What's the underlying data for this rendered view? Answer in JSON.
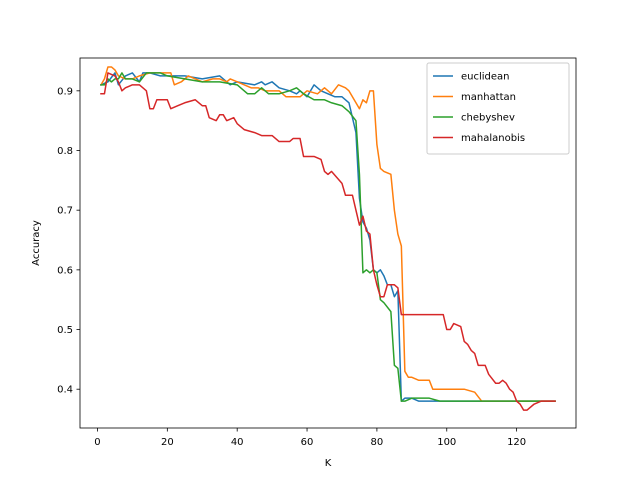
{
  "chart_data": {
    "type": "line",
    "title": "",
    "xlabel": "K",
    "ylabel": "Accuracy",
    "xlim": [
      -5,
      137
    ],
    "ylim": [
      0.335,
      0.955
    ],
    "xticks": [
      0,
      20,
      40,
      60,
      80,
      100,
      120
    ],
    "yticks": [
      0.4,
      0.5,
      0.6,
      0.7,
      0.8,
      0.9
    ],
    "xtick_labels": [
      "0",
      "20",
      "40",
      "60",
      "80",
      "100",
      "120"
    ],
    "ytick_labels": [
      "0.4",
      "0.5",
      "0.6",
      "0.7",
      "0.8",
      "0.9"
    ],
    "grid": false,
    "legend_position": "top-right",
    "series": [
      {
        "name": "euclidean",
        "color": "#1f77b4",
        "points": [
          [
            1,
            0.91
          ],
          [
            3,
            0.915
          ],
          [
            5,
            0.93
          ],
          [
            6,
            0.91
          ],
          [
            8,
            0.925
          ],
          [
            10,
            0.93
          ],
          [
            12,
            0.915
          ],
          [
            13,
            0.93
          ],
          [
            15,
            0.93
          ],
          [
            18,
            0.925
          ],
          [
            25,
            0.925
          ],
          [
            30,
            0.92
          ],
          [
            35,
            0.925
          ],
          [
            38,
            0.91
          ],
          [
            40,
            0.915
          ],
          [
            45,
            0.91
          ],
          [
            47,
            0.915
          ],
          [
            48,
            0.91
          ],
          [
            50,
            0.915
          ],
          [
            52,
            0.905
          ],
          [
            55,
            0.9
          ],
          [
            57,
            0.895
          ],
          [
            58,
            0.9
          ],
          [
            60,
            0.89
          ],
          [
            62,
            0.91
          ],
          [
            64,
            0.9
          ],
          [
            66,
            0.895
          ],
          [
            68,
            0.89
          ],
          [
            70,
            0.89
          ],
          [
            72,
            0.88
          ],
          [
            74,
            0.83
          ],
          [
            75,
            0.72
          ],
          [
            76,
            0.68
          ],
          [
            77,
            0.67
          ],
          [
            78,
            0.65
          ],
          [
            79,
            0.6
          ],
          [
            80,
            0.595
          ],
          [
            81,
            0.6
          ],
          [
            82,
            0.59
          ],
          [
            83,
            0.575
          ],
          [
            84,
            0.575
          ],
          [
            85,
            0.555
          ],
          [
            86,
            0.565
          ],
          [
            87,
            0.38
          ],
          [
            88,
            0.385
          ],
          [
            90,
            0.385
          ],
          [
            92,
            0.38
          ],
          [
            100,
            0.38
          ],
          [
            110,
            0.38
          ],
          [
            120,
            0.38
          ],
          [
            131,
            0.38
          ]
        ]
      },
      {
        "name": "manhattan",
        "color": "#ff7f0e",
        "points": [
          [
            1,
            0.91
          ],
          [
            2,
            0.92
          ],
          [
            3,
            0.94
          ],
          [
            4,
            0.94
          ],
          [
            5,
            0.935
          ],
          [
            6,
            0.925
          ],
          [
            8,
            0.92
          ],
          [
            10,
            0.92
          ],
          [
            12,
            0.925
          ],
          [
            15,
            0.93
          ],
          [
            18,
            0.93
          ],
          [
            21,
            0.93
          ],
          [
            22,
            0.91
          ],
          [
            24,
            0.915
          ],
          [
            26,
            0.925
          ],
          [
            30,
            0.915
          ],
          [
            33,
            0.92
          ],
          [
            35,
            0.92
          ],
          [
            37,
            0.915
          ],
          [
            38,
            0.92
          ],
          [
            40,
            0.915
          ],
          [
            42,
            0.91
          ],
          [
            44,
            0.905
          ],
          [
            46,
            0.905
          ],
          [
            48,
            0.9
          ],
          [
            52,
            0.9
          ],
          [
            54,
            0.89
          ],
          [
            58,
            0.89
          ],
          [
            60,
            0.9
          ],
          [
            63,
            0.895
          ],
          [
            65,
            0.905
          ],
          [
            67,
            0.895
          ],
          [
            69,
            0.91
          ],
          [
            71,
            0.905
          ],
          [
            72,
            0.9
          ],
          [
            74,
            0.88
          ],
          [
            75,
            0.87
          ],
          [
            76,
            0.885
          ],
          [
            77,
            0.88
          ],
          [
            78,
            0.9
          ],
          [
            79,
            0.9
          ],
          [
            80,
            0.81
          ],
          [
            81,
            0.77
          ],
          [
            82,
            0.765
          ],
          [
            84,
            0.76
          ],
          [
            85,
            0.7
          ],
          [
            86,
            0.66
          ],
          [
            87,
            0.64
          ],
          [
            88,
            0.43
          ],
          [
            89,
            0.42
          ],
          [
            90,
            0.42
          ],
          [
            92,
            0.415
          ],
          [
            95,
            0.415
          ],
          [
            96,
            0.4
          ],
          [
            100,
            0.4
          ],
          [
            105,
            0.4
          ],
          [
            108,
            0.395
          ],
          [
            110,
            0.38
          ],
          [
            120,
            0.38
          ],
          [
            131,
            0.38
          ]
        ]
      },
      {
        "name": "chebyshev",
        "color": "#2ca02c",
        "points": [
          [
            1,
            0.91
          ],
          [
            2,
            0.91
          ],
          [
            3,
            0.92
          ],
          [
            4,
            0.915
          ],
          [
            5,
            0.92
          ],
          [
            6,
            0.92
          ],
          [
            7,
            0.93
          ],
          [
            8,
            0.92
          ],
          [
            10,
            0.92
          ],
          [
            12,
            0.915
          ],
          [
            14,
            0.93
          ],
          [
            16,
            0.93
          ],
          [
            18,
            0.93
          ],
          [
            20,
            0.925
          ],
          [
            25,
            0.92
          ],
          [
            30,
            0.915
          ],
          [
            35,
            0.915
          ],
          [
            40,
            0.91
          ],
          [
            43,
            0.895
          ],
          [
            45,
            0.895
          ],
          [
            47,
            0.905
          ],
          [
            49,
            0.895
          ],
          [
            52,
            0.895
          ],
          [
            55,
            0.9
          ],
          [
            57,
            0.905
          ],
          [
            59,
            0.895
          ],
          [
            62,
            0.885
          ],
          [
            65,
            0.885
          ],
          [
            67,
            0.88
          ],
          [
            70,
            0.875
          ],
          [
            72,
            0.865
          ],
          [
            74,
            0.85
          ],
          [
            75,
            0.76
          ],
          [
            76,
            0.595
          ],
          [
            77,
            0.6
          ],
          [
            78,
            0.595
          ],
          [
            79,
            0.6
          ],
          [
            80,
            0.595
          ],
          [
            81,
            0.55
          ],
          [
            82,
            0.545
          ],
          [
            84,
            0.53
          ],
          [
            85,
            0.44
          ],
          [
            86,
            0.435
          ],
          [
            87,
            0.38
          ],
          [
            88,
            0.38
          ],
          [
            90,
            0.385
          ],
          [
            95,
            0.385
          ],
          [
            98,
            0.38
          ],
          [
            100,
            0.38
          ],
          [
            110,
            0.38
          ],
          [
            120,
            0.38
          ],
          [
            131,
            0.38
          ]
        ]
      },
      {
        "name": "mahalanobis",
        "color": "#d62728",
        "points": [
          [
            1,
            0.895
          ],
          [
            2,
            0.895
          ],
          [
            3,
            0.93
          ],
          [
            5,
            0.925
          ],
          [
            6,
            0.915
          ],
          [
            7,
            0.9
          ],
          [
            8,
            0.905
          ],
          [
            10,
            0.91
          ],
          [
            12,
            0.91
          ],
          [
            14,
            0.9
          ],
          [
            15,
            0.87
          ],
          [
            16,
            0.87
          ],
          [
            17,
            0.885
          ],
          [
            20,
            0.885
          ],
          [
            21,
            0.87
          ],
          [
            23,
            0.875
          ],
          [
            25,
            0.88
          ],
          [
            28,
            0.885
          ],
          [
            30,
            0.875
          ],
          [
            31,
            0.875
          ],
          [
            32,
            0.855
          ],
          [
            34,
            0.85
          ],
          [
            35,
            0.86
          ],
          [
            36,
            0.86
          ],
          [
            37,
            0.85
          ],
          [
            39,
            0.855
          ],
          [
            40,
            0.845
          ],
          [
            42,
            0.835
          ],
          [
            45,
            0.83
          ],
          [
            47,
            0.825
          ],
          [
            50,
            0.825
          ],
          [
            52,
            0.815
          ],
          [
            55,
            0.815
          ],
          [
            56,
            0.82
          ],
          [
            58,
            0.82
          ],
          [
            59,
            0.79
          ],
          [
            62,
            0.79
          ],
          [
            64,
            0.785
          ],
          [
            65,
            0.765
          ],
          [
            66,
            0.76
          ],
          [
            67,
            0.765
          ],
          [
            70,
            0.745
          ],
          [
            71,
            0.725
          ],
          [
            73,
            0.725
          ],
          [
            74,
            0.7
          ],
          [
            75,
            0.675
          ],
          [
            76,
            0.69
          ],
          [
            77,
            0.665
          ],
          [
            78,
            0.66
          ],
          [
            79,
            0.6
          ],
          [
            80,
            0.575
          ],
          [
            81,
            0.555
          ],
          [
            82,
            0.555
          ],
          [
            83,
            0.575
          ],
          [
            85,
            0.575
          ],
          [
            86,
            0.57
          ],
          [
            87,
            0.525
          ],
          [
            90,
            0.525
          ],
          [
            95,
            0.525
          ],
          [
            99,
            0.525
          ],
          [
            100,
            0.5
          ],
          [
            101,
            0.5
          ],
          [
            102,
            0.51
          ],
          [
            104,
            0.505
          ],
          [
            105,
            0.48
          ],
          [
            106,
            0.475
          ],
          [
            107,
            0.465
          ],
          [
            108,
            0.46
          ],
          [
            109,
            0.44
          ],
          [
            111,
            0.44
          ],
          [
            112,
            0.425
          ],
          [
            114,
            0.41
          ],
          [
            115,
            0.41
          ],
          [
            116,
            0.415
          ],
          [
            117,
            0.41
          ],
          [
            118,
            0.4
          ],
          [
            119,
            0.395
          ],
          [
            120,
            0.38
          ],
          [
            121,
            0.375
          ],
          [
            122,
            0.365
          ],
          [
            123,
            0.365
          ],
          [
            125,
            0.375
          ],
          [
            127,
            0.38
          ],
          [
            131,
            0.38
          ]
        ]
      }
    ]
  }
}
